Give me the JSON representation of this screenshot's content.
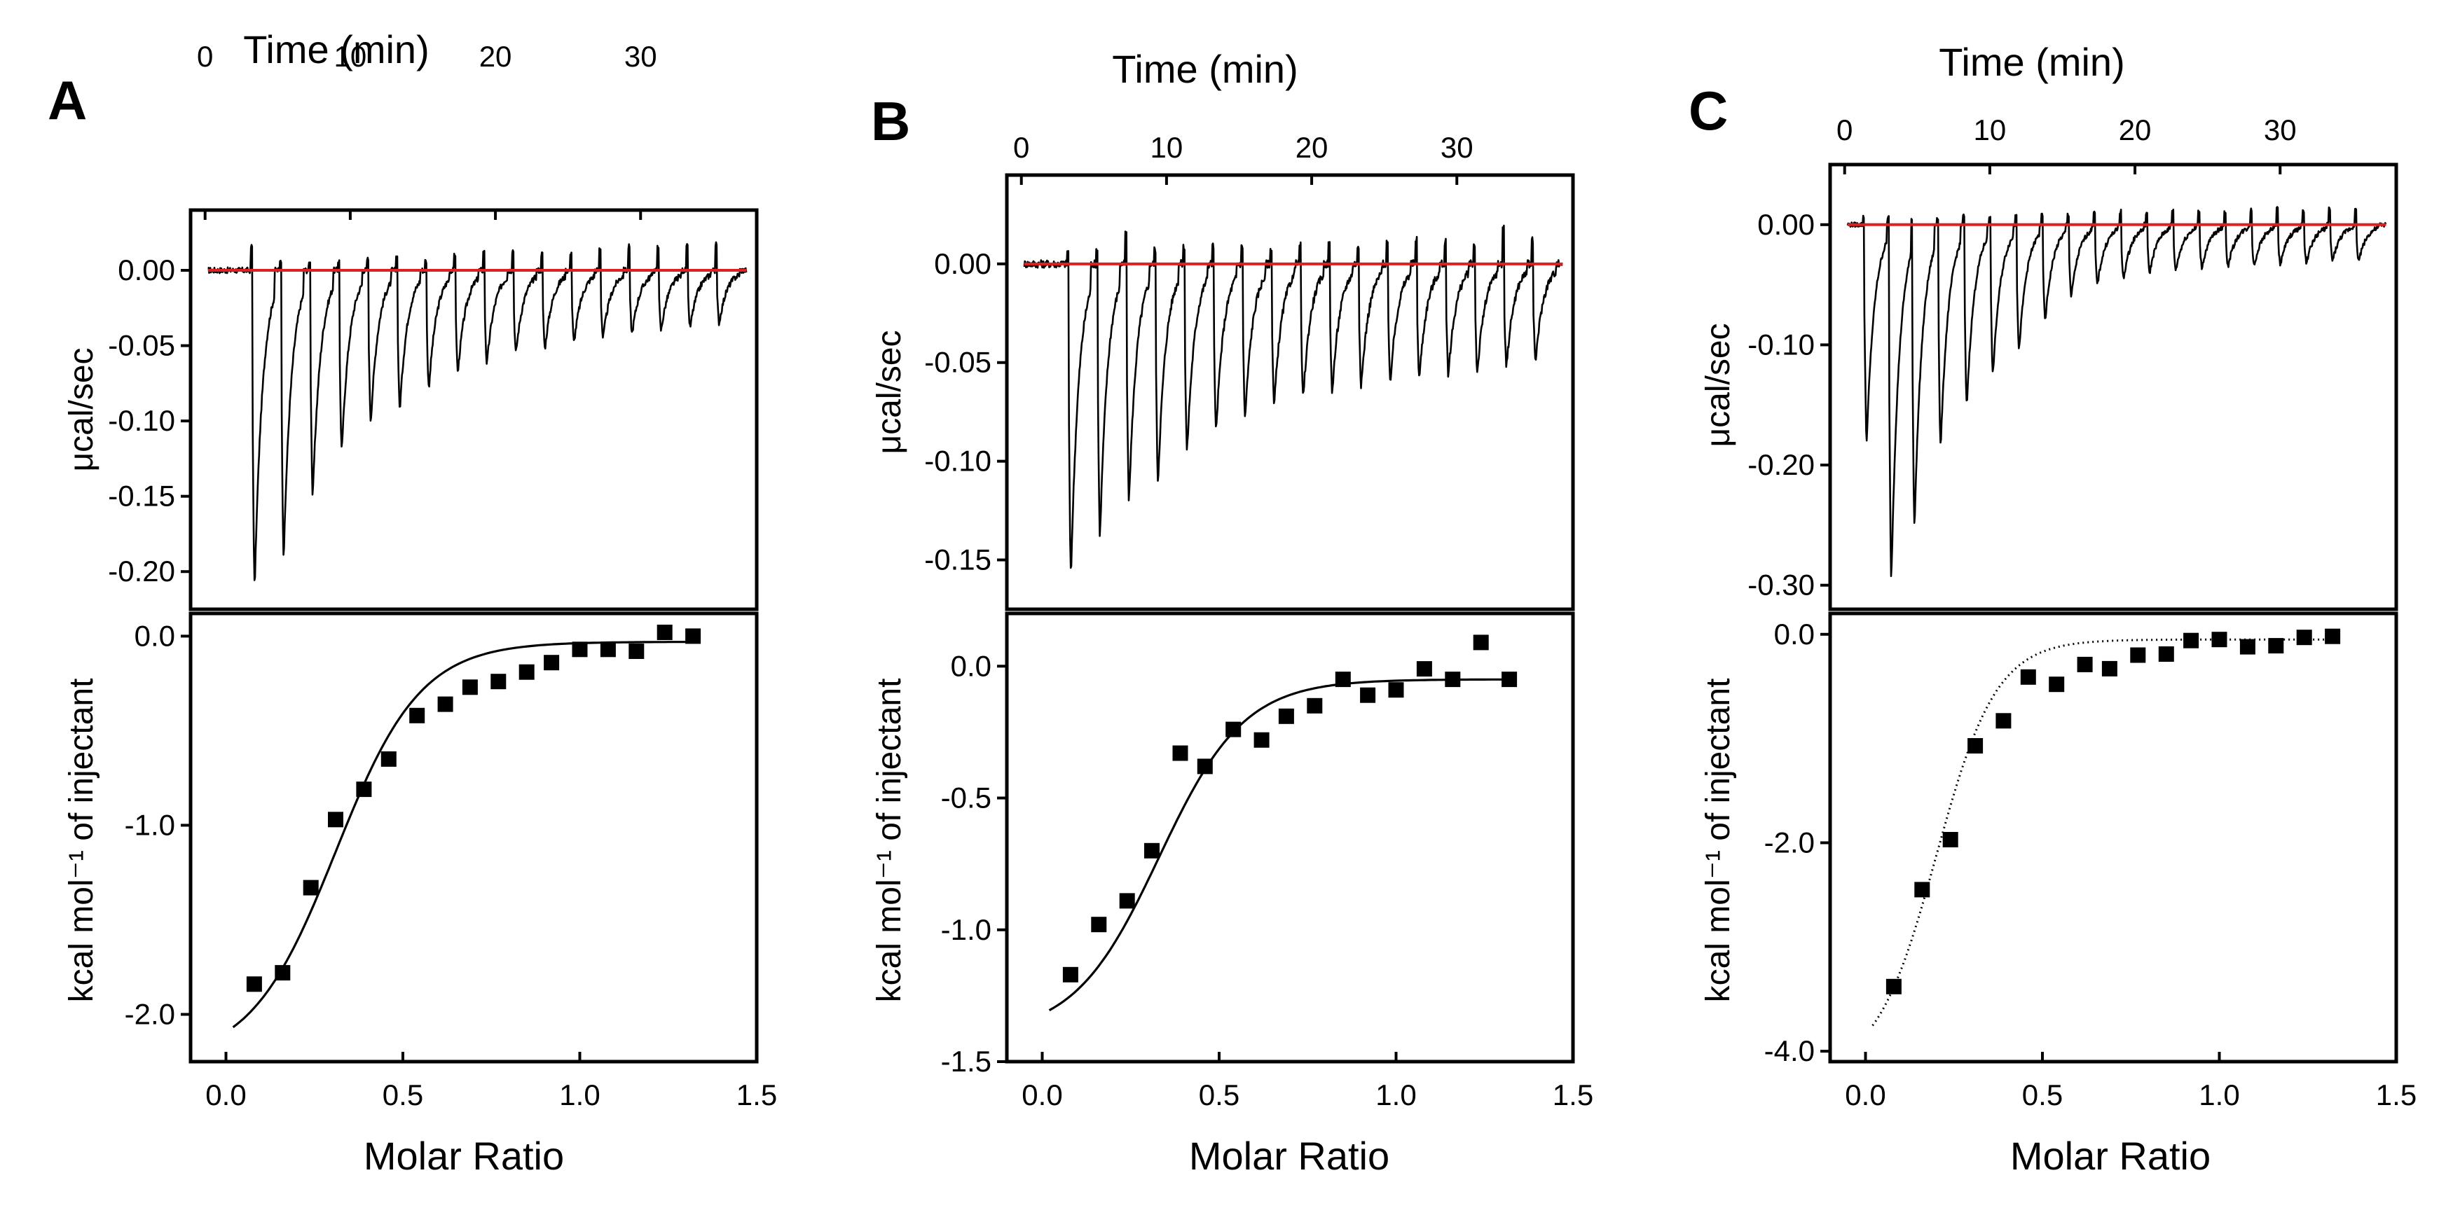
{
  "figure": {
    "panels": [
      "A",
      "B",
      "C"
    ]
  },
  "chart_data": [
    {
      "panel": "A",
      "type": "line",
      "top": {
        "xlabel": "Time (min)",
        "ylabel": "μcal/sec",
        "xlim": [
          -1,
          38
        ],
        "ylim": [
          -0.225,
          0.04
        ],
        "xticks": [
          0,
          10,
          20,
          30
        ],
        "yticks": [
          0.0,
          -0.05,
          -0.1,
          -0.15,
          -0.2
        ],
        "ytick_labels": [
          "0.00",
          "-0.05",
          "-0.10",
          "-0.15",
          "-0.20"
        ],
        "injection_times": [
          3.2,
          5.2,
          7.2,
          9.2,
          11.2,
          13.2,
          15.2,
          17.2,
          19.2,
          21.2,
          23.2,
          25.2,
          27.2,
          29.2,
          31.2,
          33.2,
          35.2
        ],
        "peak_minima": [
          -0.21,
          -0.19,
          -0.15,
          -0.12,
          -0.1,
          -0.092,
          -0.078,
          -0.068,
          -0.062,
          -0.055,
          -0.052,
          -0.048,
          -0.045,
          -0.042,
          -0.04,
          -0.038,
          -0.035
        ],
        "spike_maxima": [
          0.026,
          0.012,
          0.008,
          0.01,
          0.012,
          0.015,
          0.01,
          0.018,
          0.02,
          0.022,
          0.018,
          0.02,
          0.024,
          0.026,
          0.028,
          0.026,
          0.028
        ],
        "baseline": 0.0
      },
      "bottom": {
        "xlabel": "Molar Ratio",
        "ylabel": "kcal mol⁻¹ of injectant",
        "xlim": [
          -0.1,
          1.5
        ],
        "ylim": [
          -2.25,
          0.12
        ],
        "xticks": [
          0.0,
          0.5,
          1.0,
          1.5
        ],
        "xtick_labels": [
          "0.0",
          "0.5",
          "1.0",
          "1.5"
        ],
        "yticks": [
          0.0,
          -1.0,
          -2.0
        ],
        "ytick_labels": [
          "0.0",
          "-1.0",
          "-2.0"
        ],
        "points_x": [
          0.08,
          0.16,
          0.24,
          0.31,
          0.39,
          0.46,
          0.54,
          0.62,
          0.69,
          0.77,
          0.85,
          0.92,
          1.0,
          1.08,
          1.16,
          1.24,
          1.32
        ],
        "points_y": [
          -1.84,
          -1.78,
          -1.33,
          -0.97,
          -0.81,
          -0.65,
          -0.42,
          -0.36,
          -0.27,
          -0.24,
          -0.19,
          -0.14,
          -0.07,
          -0.07,
          -0.08,
          0.02,
          0.0
        ],
        "fit": {
          "ymin": -2.25,
          "ymax": -0.03,
          "center": 0.31,
          "width": 0.12,
          "x_from": 0.02,
          "x_to": 1.34,
          "style": "solid"
        }
      }
    },
    {
      "panel": "B",
      "type": "line",
      "top": {
        "xlabel": "Time (min)",
        "ylabel": "μcal/sec",
        "xlim": [
          -1,
          38
        ],
        "ylim": [
          -0.175,
          0.045
        ],
        "xticks": [
          0,
          10,
          20,
          30
        ],
        "yticks": [
          0.0,
          -0.05,
          -0.1,
          -0.15
        ],
        "ytick_labels": [
          "0.00",
          "-0.05",
          "-0.10",
          "-0.15"
        ],
        "injection_times": [
          3.2,
          5.2,
          7.2,
          9.2,
          11.2,
          13.2,
          15.2,
          17.2,
          19.2,
          21.2,
          23.2,
          25.2,
          27.2,
          29.2,
          31.2,
          33.2,
          35.2
        ],
        "peak_minima": [
          -0.158,
          -0.138,
          -0.12,
          -0.11,
          -0.095,
          -0.085,
          -0.078,
          -0.072,
          -0.068,
          -0.065,
          -0.062,
          -0.06,
          -0.058,
          -0.056,
          -0.055,
          -0.052,
          -0.05
        ],
        "spike_maxima": [
          0.01,
          0.012,
          0.025,
          0.012,
          0.014,
          0.015,
          0.014,
          0.012,
          0.015,
          0.016,
          0.015,
          0.018,
          0.02,
          0.018,
          0.016,
          0.03,
          0.02
        ],
        "baseline": 0.0
      },
      "bottom": {
        "xlabel": "Molar Ratio",
        "ylabel": "kcal mol⁻¹ of injectant",
        "xlim": [
          -0.1,
          1.5
        ],
        "ylim": [
          -1.5,
          0.2
        ],
        "xticks": [
          0.0,
          0.5,
          1.0,
          1.5
        ],
        "xtick_labels": [
          "0.0",
          "0.5",
          "1.0",
          "1.5"
        ],
        "yticks": [
          0.0,
          -0.5,
          -1.0,
          -1.5
        ],
        "ytick_labels": [
          "0.0",
          "-0.5",
          "-1.0",
          "-1.5"
        ],
        "points_x": [
          0.08,
          0.16,
          0.24,
          0.31,
          0.39,
          0.46,
          0.54,
          0.62,
          0.69,
          0.77,
          0.85,
          0.92,
          1.0,
          1.08,
          1.16,
          1.24,
          1.32
        ],
        "points_y": [
          -1.17,
          -0.98,
          -0.89,
          -0.7,
          -0.33,
          -0.38,
          -0.24,
          -0.28,
          -0.19,
          -0.15,
          -0.05,
          -0.11,
          -0.09,
          -0.01,
          -0.05,
          0.09,
          -0.05
        ],
        "fit": {
          "ymin": -1.4,
          "ymax": -0.05,
          "center": 0.33,
          "width": 0.12,
          "x_from": 0.02,
          "x_to": 1.34,
          "style": "solid"
        }
      }
    },
    {
      "panel": "C",
      "type": "line",
      "top": {
        "xlabel": "Time (min)",
        "ylabel": "μcal/sec",
        "xlim": [
          -1,
          38
        ],
        "ylim": [
          -0.32,
          0.05
        ],
        "xticks": [
          0,
          10,
          20,
          30
        ],
        "yticks": [
          0.0,
          -0.1,
          -0.2,
          -0.3
        ],
        "ytick_labels": [
          "0.00",
          "-0.10",
          "-0.20",
          "-0.30"
        ],
        "injection_times": [
          1.3,
          3.0,
          4.6,
          6.4,
          8.2,
          10.0,
          11.8,
          13.6,
          15.4,
          17.2,
          19.0,
          20.8,
          22.6,
          24.4,
          26.2,
          28.0,
          29.8,
          31.6,
          33.4,
          35.2
        ],
        "peak_minima": [
          -0.18,
          -0.295,
          -0.25,
          -0.185,
          -0.15,
          -0.125,
          -0.105,
          -0.08,
          -0.06,
          -0.05,
          -0.045,
          -0.04,
          -0.038,
          -0.036,
          -0.035,
          -0.034,
          -0.033,
          -0.032,
          -0.03,
          -0.03
        ],
        "spike_maxima": [
          0.012,
          0.01,
          0.008,
          0.01,
          0.012,
          0.012,
          0.015,
          0.012,
          0.014,
          0.016,
          0.018,
          0.016,
          0.02,
          0.018,
          0.018,
          0.02,
          0.022,
          0.02,
          0.022,
          0.02
        ],
        "baseline": 0.0
      },
      "bottom": {
        "xlabel": "Molar Ratio",
        "ylabel": "kcal mol⁻¹ of injectant",
        "xlim": [
          -0.1,
          1.5
        ],
        "ylim": [
          -4.1,
          0.2
        ],
        "xticks": [
          0.0,
          0.5,
          1.0,
          1.5
        ],
        "xtick_labels": [
          "0.0",
          "0.5",
          "1.0",
          "1.5"
        ],
        "yticks": [
          0.0,
          -2.0,
          -4.0
        ],
        "ytick_labels": [
          "0.0",
          "-2.0",
          "-4.0"
        ],
        "points_x": [
          0.08,
          0.16,
          0.24,
          0.31,
          0.39,
          0.46,
          0.54,
          0.62,
          0.69,
          0.77,
          0.85,
          0.92,
          1.0,
          1.08,
          1.16,
          1.24,
          1.32
        ],
        "points_y": [
          -3.38,
          -2.45,
          -1.97,
          -1.07,
          -0.83,
          -0.41,
          -0.48,
          -0.29,
          -0.33,
          -0.2,
          -0.19,
          -0.06,
          -0.05,
          -0.12,
          -0.11,
          -0.03,
          -0.02
        ],
        "fit": {
          "ymin": -4.2,
          "ymax": -0.05,
          "center": 0.2,
          "width": 0.085,
          "x_from": 0.02,
          "x_to": 1.34,
          "style": "dotted"
        }
      }
    }
  ]
}
